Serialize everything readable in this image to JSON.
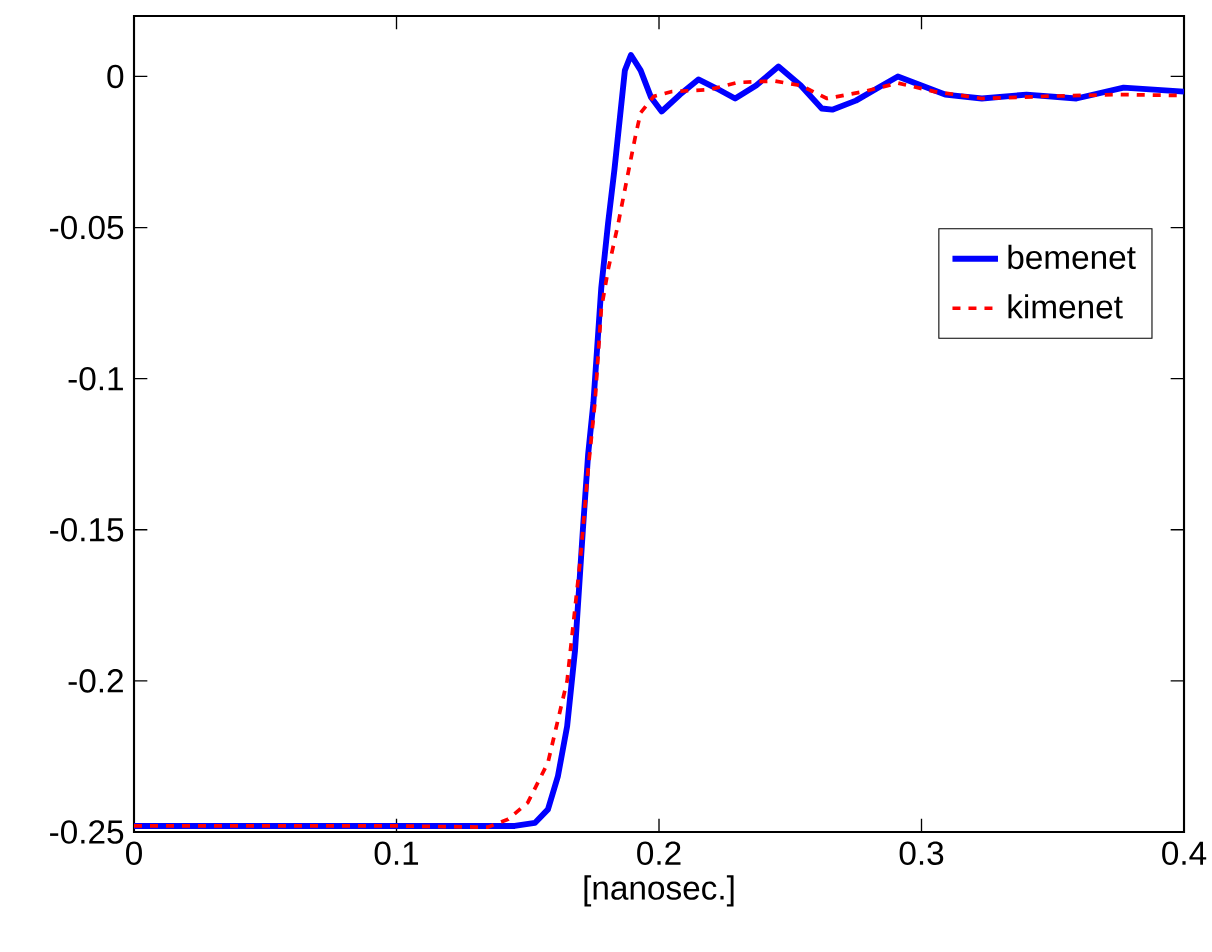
{
  "chart_data": {
    "type": "line",
    "xlabel": "[nanosec.]",
    "xlim": [
      0,
      0.4
    ],
    "ylim": [
      -0.25,
      0.02
    ],
    "xticks": [
      0,
      0.1,
      0.2,
      0.3,
      0.4
    ],
    "yticks": [
      -0.25,
      -0.2,
      -0.15,
      -0.1,
      -0.05,
      0
    ],
    "legend": "right",
    "grid": false,
    "marker": "none",
    "series": [
      {
        "name": "bemenet",
        "color": "#0000ff",
        "line_style": "solid",
        "x": [
          0,
          0.05,
          0.1,
          0.13,
          0.145,
          0.1527,
          0.1577,
          0.1615,
          0.165,
          0.168,
          0.171,
          0.173,
          0.175,
          0.178,
          0.1806,
          0.183,
          0.187,
          0.1893,
          0.193,
          0.197,
          0.201,
          0.208,
          0.215,
          0.222,
          0.229,
          0.237,
          0.2455,
          0.254,
          0.262,
          0.266,
          0.275,
          0.283,
          0.291,
          0.3,
          0.309,
          0.323,
          0.34,
          0.359,
          0.377,
          0.4
        ],
        "values": [
          -0.248,
          -0.248,
          -0.248,
          -0.248,
          -0.248,
          -0.247,
          -0.2425,
          -0.2315,
          -0.215,
          -0.19,
          -0.15,
          -0.125,
          -0.108,
          -0.07,
          -0.0485,
          -0.031,
          0.002,
          0.0071,
          0.002,
          -0.007,
          -0.0116,
          -0.006,
          -0.001,
          -0.004,
          -0.0073,
          -0.003,
          0.0033,
          -0.003,
          -0.0106,
          -0.011,
          -0.008,
          -0.004,
          0.0,
          -0.003,
          -0.006,
          -0.0073,
          -0.006,
          -0.0073,
          -0.0037,
          -0.005
        ]
      },
      {
        "name": "kimenet",
        "color": "#ff0000",
        "line_style": "dashed",
        "x": [
          0,
          0.05,
          0.1,
          0.1347,
          0.1425,
          0.15,
          0.1577,
          0.165,
          0.17,
          0.173,
          0.1756,
          0.178,
          0.1806,
          0.1845,
          0.188,
          0.191,
          0.193,
          0.198,
          0.205,
          0.219,
          0.23,
          0.244,
          0.254,
          0.264,
          0.278,
          0.291,
          0.305,
          0.323,
          0.35,
          0.375,
          0.4
        ],
        "values": [
          -0.248,
          -0.248,
          -0.248,
          -0.2484,
          -0.2458,
          -0.2403,
          -0.227,
          -0.2,
          -0.16,
          -0.13,
          -0.108,
          -0.077,
          -0.064,
          -0.0485,
          -0.033,
          -0.0198,
          -0.012,
          -0.0066,
          -0.005,
          -0.0044,
          -0.002,
          -0.0015,
          -0.003,
          -0.0073,
          -0.005,
          -0.0022,
          -0.005,
          -0.0073,
          -0.0065,
          -0.006,
          -0.0063
        ]
      }
    ]
  }
}
